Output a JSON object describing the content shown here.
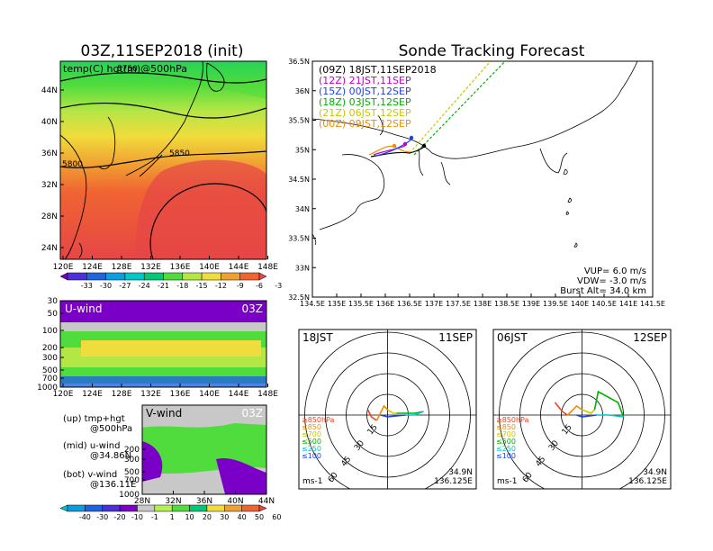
{
  "main_title": "03Z,11SEP2018 (init)",
  "tracking_title": "Sonde Tracking Forecast",
  "upper_map": {
    "overlay_label": "temp(C) hgt(m)@500hPa",
    "contour_labels": [
      "5750",
      "5850",
      "5800"
    ],
    "lat_ticks": [
      "44N",
      "40N",
      "36N",
      "32N",
      "28N",
      "24N"
    ],
    "lon_ticks": [
      "120E",
      "124E",
      "128E",
      "132E",
      "136E",
      "140E",
      "144E",
      "148E"
    ]
  },
  "temp_colorbar": {
    "labels": [
      "-33",
      "-30",
      "-27",
      "-24",
      "-21",
      "-18",
      "-15",
      "-12",
      "-9",
      "-6",
      "-3"
    ],
    "colors": [
      "#7a00c8",
      "#4b2fd8",
      "#1e64e0",
      "#0a9ee0",
      "#00c8c8",
      "#00c878",
      "#50dc3c",
      "#b4e646",
      "#f0dc3c",
      "#f0a032",
      "#f06432",
      "#e64646"
    ]
  },
  "uwind_panel": {
    "title": "U-wind",
    "time": "03Z",
    "pressure_ticks": [
      "30",
      "50",
      "100",
      "200",
      "300",
      "500",
      "700",
      "1000"
    ],
    "lon_ticks": [
      "120E",
      "124E",
      "128E",
      "132E",
      "136E",
      "140E",
      "144E",
      "148E"
    ]
  },
  "vwind_panel": {
    "title": "V-wind",
    "time": "03Z",
    "pressure_ticks": [
      "200",
      "300",
      "500",
      "700",
      "1000"
    ],
    "lat_ticks": [
      "28N",
      "32N",
      "36N",
      "40N",
      "44N"
    ]
  },
  "legend_notes": [
    {
      "line1": "(up) tmp+hgt",
      "line2": "@500hPa"
    },
    {
      "line1": "(mid) u-wind",
      "line2": "@34.86N"
    },
    {
      "line1": "(bot) v-wind",
      "line2": "@136.11E"
    }
  ],
  "wind_colorbar": {
    "labels": [
      "-40",
      "-30",
      "-20",
      "-10",
      "-1",
      "1",
      "10",
      "20",
      "30",
      "40",
      "50",
      "60"
    ],
    "colors": [
      "#00c8c8",
      "#0a9ee0",
      "#1e64e0",
      "#4b2fd8",
      "#7a00c8",
      "#c8c8c8",
      "#b4f050",
      "#50dc3c",
      "#00c878",
      "#f0dc3c",
      "#f0a032",
      "#f06432",
      "#e64646"
    ]
  },
  "track_map": {
    "lat_ticks": [
      "36.5N",
      "36N",
      "35.5N",
      "35N",
      "34.5N",
      "34N",
      "33.5N",
      "33N",
      "32.5N"
    ],
    "lon_ticks": [
      "134.5E",
      "135E",
      "135.5E",
      "136E",
      "136.5E",
      "137E",
      "137.5E",
      "138E",
      "138.5E",
      "139E",
      "139.5E",
      "140E",
      "140.5E",
      "141E",
      "141.5E"
    ],
    "launches": [
      {
        "label": "(09Z)  18JST,11SEP2018",
        "color": "#000000"
      },
      {
        "label": "(12Z)  21JST,11SEP",
        "color": "#c000c0"
      },
      {
        "label": "(15Z)  00JST,12SEP",
        "color": "#2040f0"
      },
      {
        "label": "(18Z)  03JST,12SEP",
        "color": "#00b000"
      },
      {
        "label": "(21Z)  06JST,12SEP",
        "color": "#c8c800"
      },
      {
        "label": "(00Z)  09JST,12SEP",
        "color": "#f08c00"
      }
    ],
    "vup": "VUP=  6.0  m/s",
    "vdw": "VDW= -3.0  m/s",
    "burst": "Burst Alt=  34.0  km"
  },
  "hodograph_left": {
    "time": "18JST",
    "date": "11SEP",
    "ring_labels": [
      "15",
      "30",
      "45",
      "60"
    ],
    "location_lat": "34.9N",
    "location_lon": "136.125E",
    "unit": "ms-1"
  },
  "hodograph_right": {
    "time": "06JST",
    "date": "12SEP",
    "ring_labels": [
      "15",
      "30",
      "45",
      "60"
    ],
    "location_lat": "34.9N",
    "location_lon": "136.125E",
    "unit": "ms-1"
  },
  "pressure_legend": [
    {
      "label": "≥850hPa",
      "color": "#f04020"
    },
    {
      "label": "≤850",
      "color": "#f08c00"
    },
    {
      "label": "≤700",
      "color": "#c8c800"
    },
    {
      "label": "≤500",
      "color": "#00b000"
    },
    {
      "label": "≤250",
      "color": "#00c8c8"
    },
    {
      "label": "≤100",
      "color": "#2040f0"
    }
  ]
}
